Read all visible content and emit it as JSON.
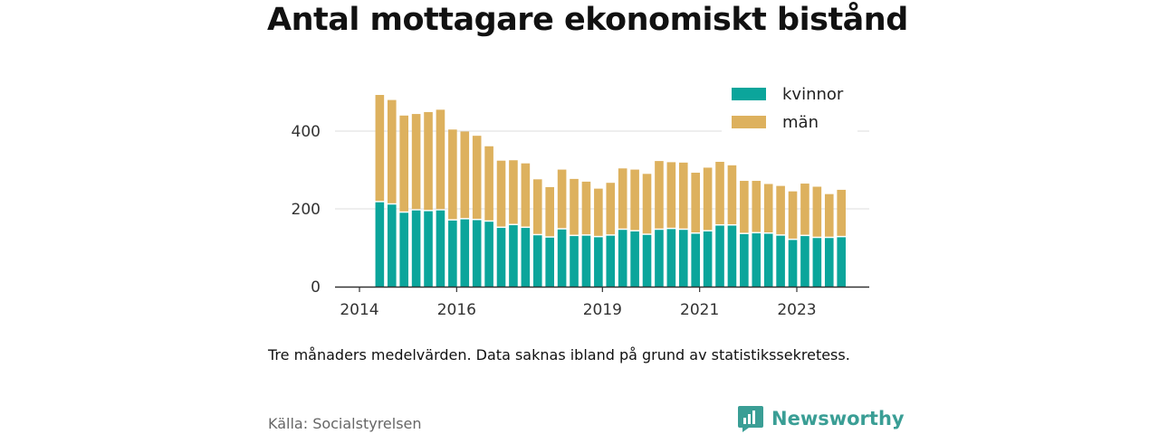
{
  "title": "Antal mottagare ekonomiskt bistånd",
  "note": "Tre månaders medelvärden. Data saknas ibland på grund av statistikssekretess.",
  "source": "Källa: Socialstyrelsen",
  "brand": {
    "name": "Newsworthy",
    "icon": "newsworthy-logo-icon",
    "color": "#3a9e95"
  },
  "chart_data": {
    "type": "bar",
    "stacked": true,
    "x": [
      "2014-06",
      "2014-09",
      "2014-12",
      "2015-03",
      "2015-06",
      "2015-09",
      "2015-12",
      "2016-03",
      "2016-06",
      "2016-09",
      "2016-12",
      "2017-03",
      "2017-06",
      "2017-09",
      "2017-12",
      "2018-03",
      "2018-06",
      "2018-09",
      "2018-12",
      "2019-03",
      "2019-06",
      "2019-09",
      "2019-12",
      "2020-03",
      "2020-06",
      "2020-09",
      "2020-12",
      "2021-03",
      "2021-06",
      "2021-09",
      "2021-12",
      "2022-03",
      "2022-06",
      "2022-09",
      "2022-12",
      "2023-03",
      "2023-06",
      "2023-09",
      "2023-12",
      "2024-03"
    ],
    "series": [
      {
        "name": "kvinnor",
        "color": "#0ba59b",
        "values": [
          217,
          211,
          190,
          196,
          194,
          196,
          170,
          173,
          171,
          167,
          151,
          158,
          151,
          132,
          126,
          147,
          130,
          131,
          127,
          131,
          146,
          142,
          133,
          146,
          148,
          146,
          136,
          142,
          157,
          157,
          135,
          137,
          136,
          131,
          120,
          130,
          125,
          125,
          127,
          null
        ]
      },
      {
        "name": "män",
        "color": "#ddb15e",
        "values": [
          276,
          269,
          250,
          248,
          255,
          259,
          234,
          226,
          217,
          194,
          173,
          167,
          166,
          144,
          130,
          154,
          147,
          139,
          125,
          136,
          158,
          159,
          157,
          177,
          172,
          173,
          157,
          164,
          164,
          155,
          137,
          135,
          128,
          128,
          125,
          135,
          132,
          113,
          122,
          null
        ]
      }
    ],
    "xticks": [
      "2014",
      "2016",
      "2019",
      "2021",
      "2023"
    ],
    "yticks": [
      "0",
      "200",
      "400"
    ],
    "ylim": [
      0,
      500
    ],
    "grid": true,
    "legend": {
      "position": "top-right"
    }
  }
}
